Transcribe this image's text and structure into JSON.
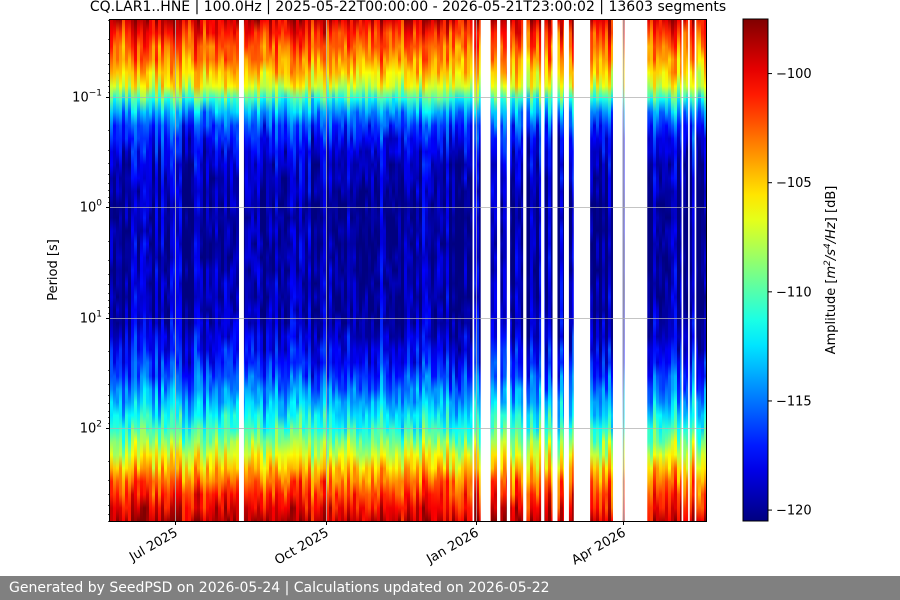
{
  "chart_data": {
    "type": "heatmap",
    "title": "CQ.LAR1..HNE | 100.0Hz | 2025-05-22T00:00:00 - 2026-05-21T23:00:02 | 13603 segments",
    "ylabel": "Period [s]",
    "ylog": true,
    "yinverted": true,
    "ylim": [
      0.02,
      700
    ],
    "yticks": [
      {
        "value": 0.1,
        "base": "10",
        "exp": "−1"
      },
      {
        "value": 1,
        "base": "10",
        "exp": "0"
      },
      {
        "value": 10,
        "base": "10",
        "exp": "1"
      },
      {
        "value": 100,
        "base": "10",
        "exp": "2"
      }
    ],
    "xlim": [
      "2025-05-22",
      "2026-05-21"
    ],
    "xticks": [
      {
        "date": "2025-07-01",
        "label": "Jul 2025"
      },
      {
        "date": "2025-10-01",
        "label": "Oct 2025"
      },
      {
        "date": "2026-01-01",
        "label": "Jan 2026"
      },
      {
        "date": "2026-04-01",
        "label": "Apr 2026"
      }
    ],
    "grid": true,
    "colorbar": {
      "label_parts": [
        "Amplitude [",
        "m",
        "2",
        "/",
        "s",
        "4",
        "/",
        "Hz",
        "] [dB]"
      ],
      "vmin": -120.5,
      "vmax": -97.5,
      "ticks": [
        -100,
        -105,
        -110,
        -115,
        -120
      ],
      "tick_labels": [
        "−100",
        "−105",
        "−110",
        "−115",
        "−120"
      ],
      "colormap": "jet"
    },
    "period_profile": [
      {
        "period": 0.02,
        "value": -99.5
      },
      {
        "period": 0.03,
        "value": -102
      },
      {
        "period": 0.05,
        "value": -104
      },
      {
        "period": 0.08,
        "value": -107
      },
      {
        "period": 0.12,
        "value": -113
      },
      {
        "period": 0.2,
        "value": -117
      },
      {
        "period": 0.4,
        "value": -119
      },
      {
        "period": 1,
        "value": -120
      },
      {
        "period": 10,
        "value": -119.5
      },
      {
        "period": 25,
        "value": -117.5
      },
      {
        "period": 50,
        "value": -114.5
      },
      {
        "period": 100,
        "value": -111
      },
      {
        "period": 200,
        "value": -106
      },
      {
        "period": 300,
        "value": -103
      },
      {
        "period": 450,
        "value": -101
      },
      {
        "period": 700,
        "value": -99
      }
    ],
    "data_gaps": [
      {
        "start": "2025-08-09",
        "end": "2025-08-12"
      },
      {
        "start": "2025-12-30",
        "end": "2025-12-31"
      },
      {
        "start": "2026-01-04",
        "end": "2026-01-10"
      },
      {
        "start": "2026-01-14",
        "end": "2026-01-16"
      },
      {
        "start": "2026-01-20",
        "end": "2026-01-22"
      },
      {
        "start": "2026-01-30",
        "end": "2026-02-01"
      },
      {
        "start": "2026-02-10",
        "end": "2026-02-12"
      },
      {
        "start": "2026-02-17",
        "end": "2026-02-20"
      },
      {
        "start": "2026-02-24",
        "end": "2026-02-27"
      },
      {
        "start": "2026-03-02",
        "end": "2026-03-12"
      },
      {
        "start": "2026-03-26",
        "end": "2026-04-01"
      },
      {
        "start": "2026-04-02",
        "end": "2026-04-16"
      },
      {
        "start": "2026-05-07",
        "end": "2026-05-08"
      },
      {
        "start": "2026-05-11",
        "end": "2026-05-12"
      },
      {
        "start": "2026-05-15",
        "end": "2026-05-16"
      }
    ]
  },
  "footer": {
    "text": "Generated by SeedPSD on 2026-05-24 | Calculations updated on 2026-05-22"
  }
}
